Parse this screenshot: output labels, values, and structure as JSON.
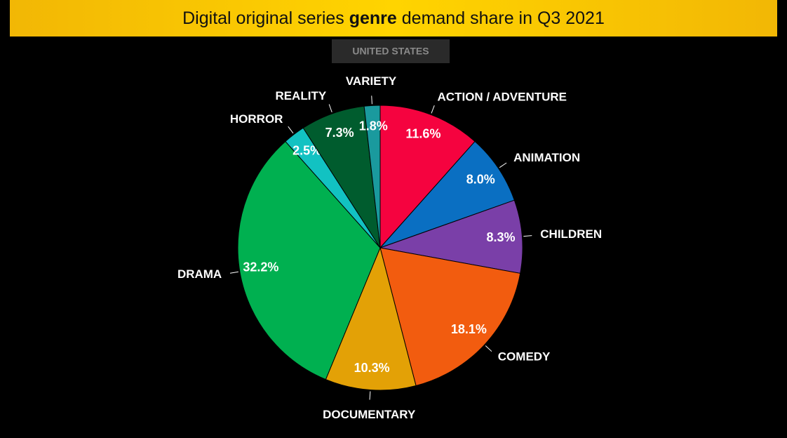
{
  "chart_data": {
    "type": "pie",
    "title": [
      "Digital original series ",
      "genre",
      " demand share in Q3 2021"
    ],
    "subtitle": "UNITED STATES",
    "categories": [
      "ACTION / ADVENTURE",
      "ANIMATION",
      "CHILDREN",
      "COMEDY",
      "DOCUMENTARY",
      "DRAMA",
      "HORROR",
      "REALITY",
      "VARIETY"
    ],
    "values": [
      11.6,
      8.0,
      8.3,
      18.1,
      10.3,
      32.2,
      2.5,
      7.3,
      1.8
    ],
    "value_labels": [
      "11.6%",
      "8.0%",
      "8.3%",
      "18.1%",
      "10.3%",
      "32.2%",
      "2.5%",
      "7.3%",
      "1.8%"
    ],
    "colors": [
      "#f5033f",
      "#0a6fc2",
      "#7a3fa8",
      "#f25c0f",
      "#e3a106",
      "#00b050",
      "#12c2c2",
      "#005c2e",
      "#1a9a9e"
    ]
  }
}
